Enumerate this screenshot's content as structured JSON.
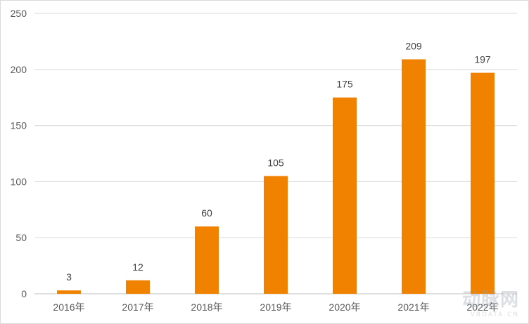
{
  "chart_data": {
    "type": "bar",
    "categories": [
      "2016年",
      "2017年",
      "2018年",
      "2019年",
      "2020年",
      "2021年",
      "2022年"
    ],
    "values": [
      3,
      12,
      60,
      105,
      175,
      209,
      197
    ],
    "ylim": [
      0,
      250
    ],
    "yticks": [
      0,
      50,
      100,
      150,
      200,
      250
    ],
    "grid": true,
    "bar_color": "#F08200",
    "data_labels": true
  },
  "watermark": {
    "text": "动脉网",
    "sub": "VBDATA.CN"
  }
}
